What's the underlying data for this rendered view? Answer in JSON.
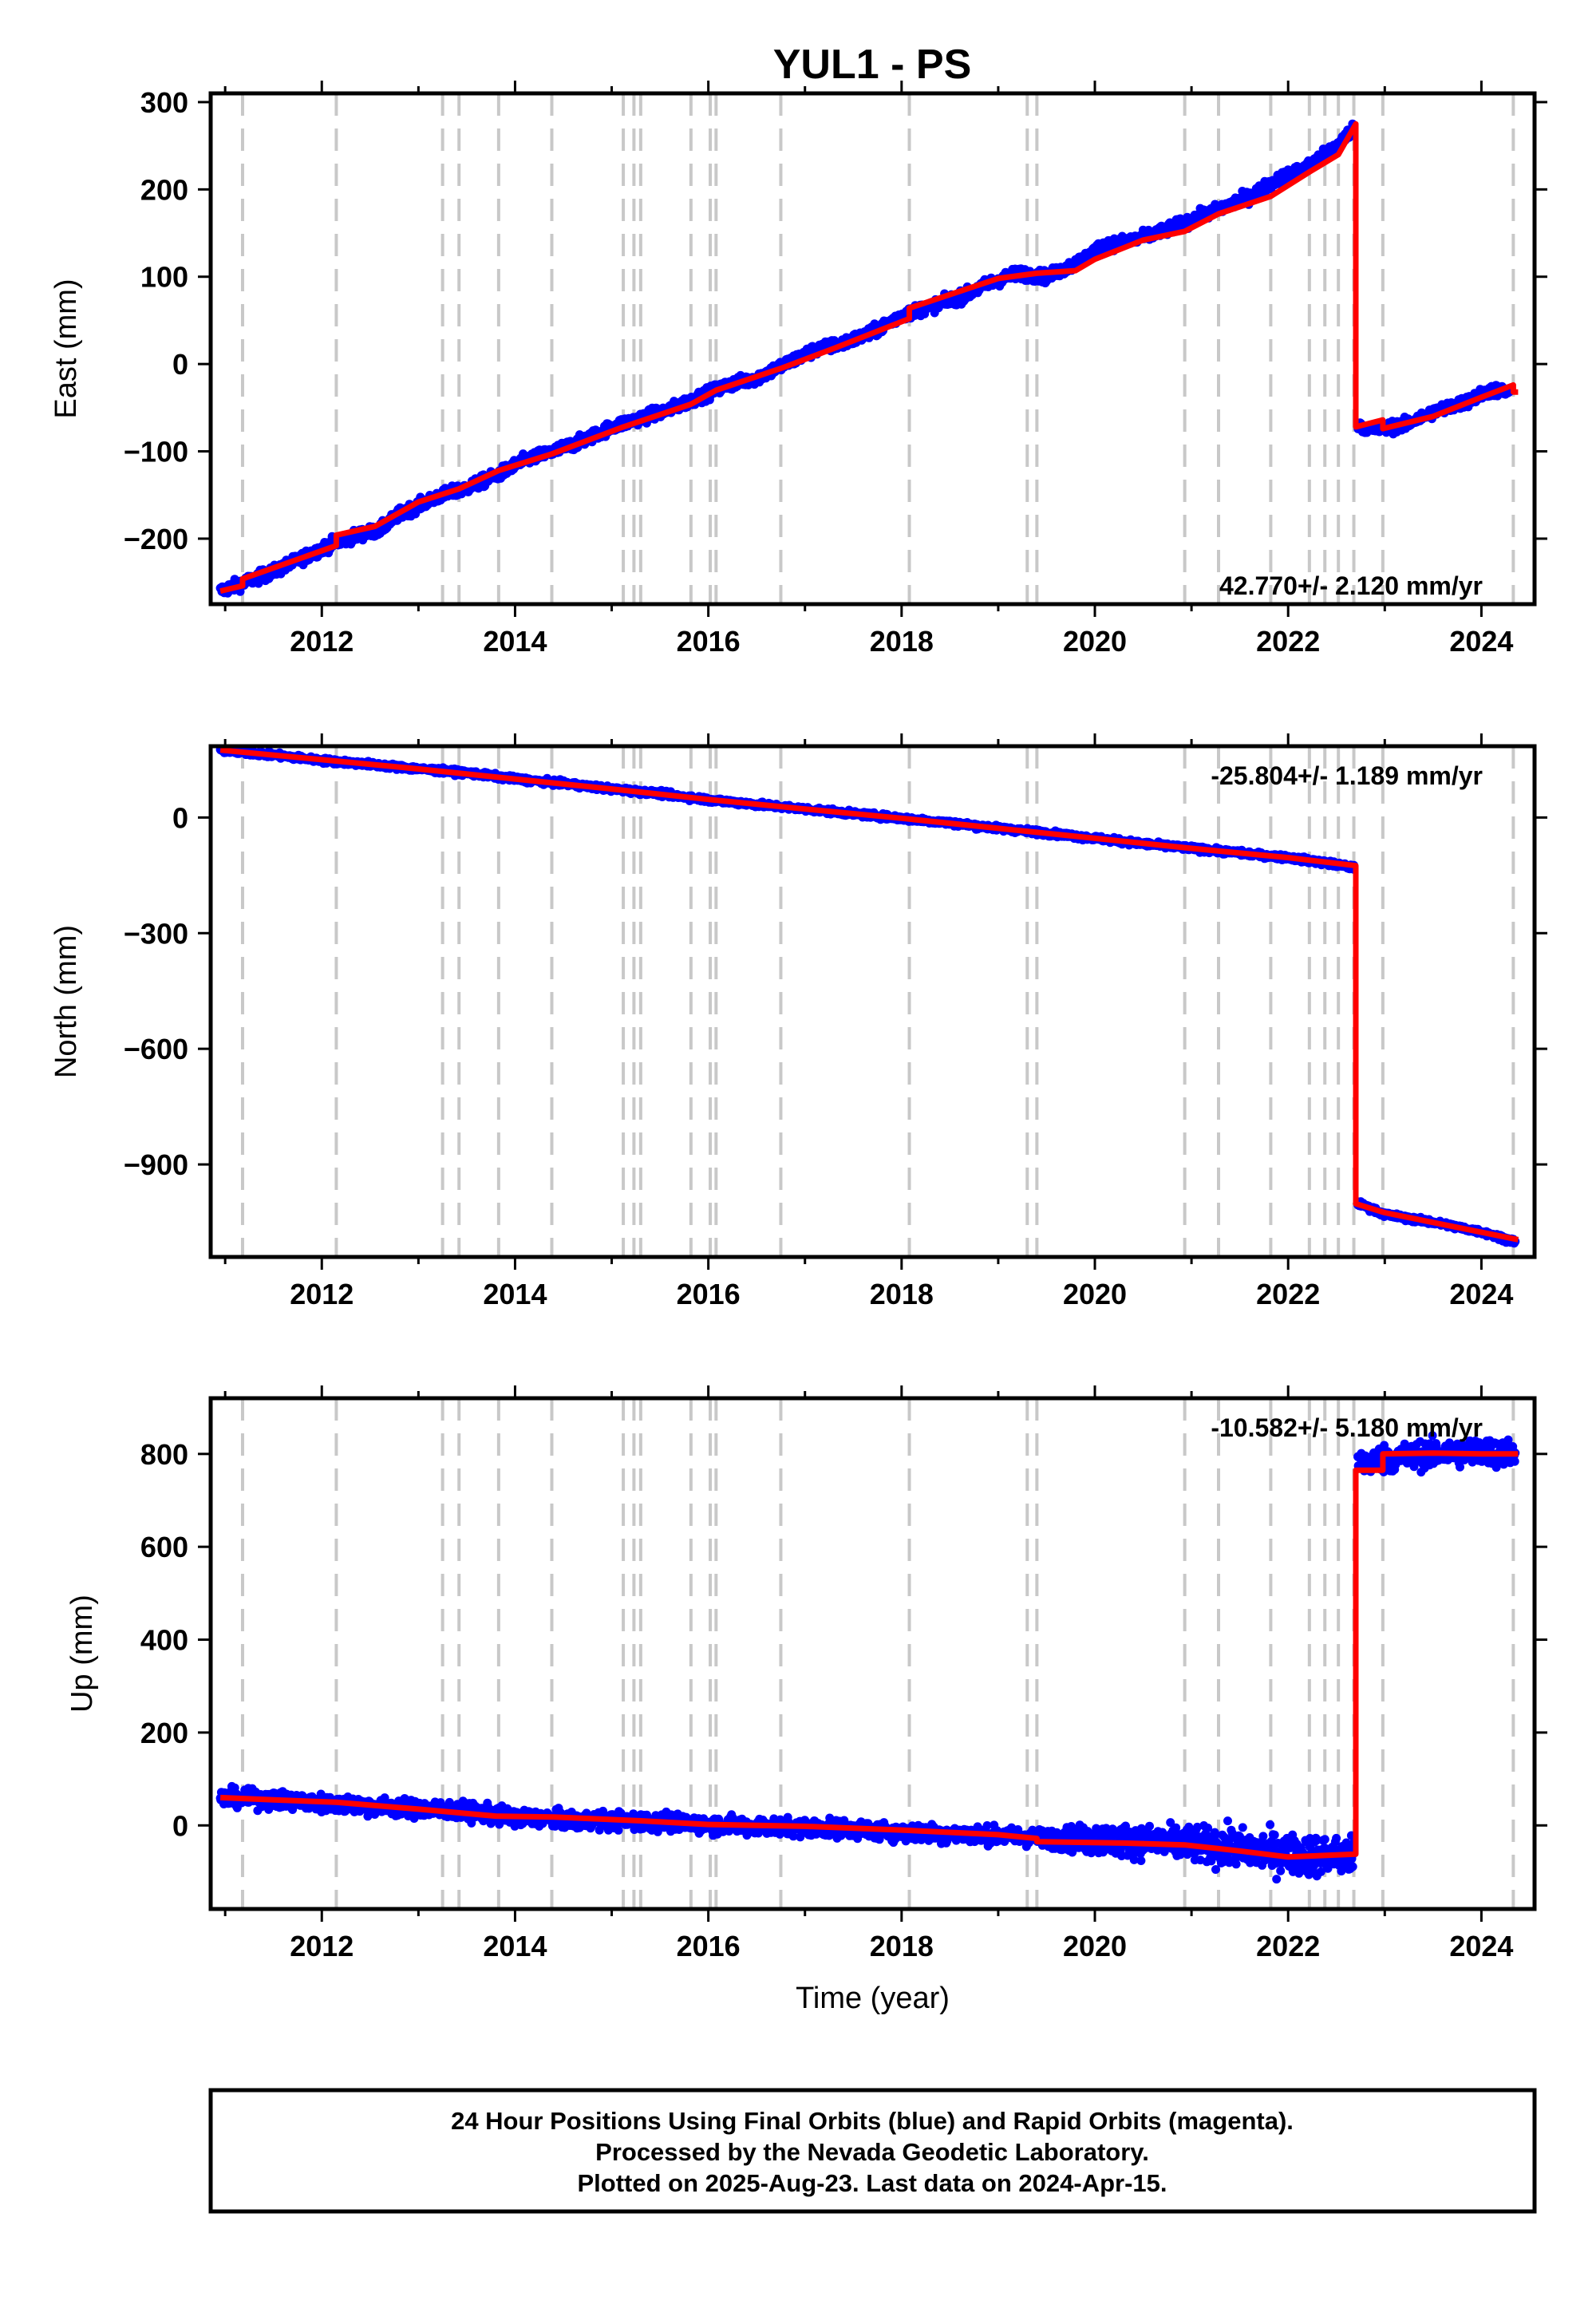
{
  "title": "YUL1 - PS",
  "footer": {
    "line1": "24 Hour Positions Using Final Orbits (blue) and Rapid Orbits (magenta).",
    "line2": "Processed by the Nevada Geodetic Laboratory.",
    "line3": "Plotted on 2025-Aug-23. Last data on 2024-Apr-15."
  },
  "colors": {
    "final_orbits": "#0000ff",
    "model": "#ff0000",
    "event_lines": "#c8c8c8",
    "axes": "#000000"
  },
  "chart_data": [
    {
      "type": "scatter",
      "panel": "east",
      "ylabel": "East (mm)",
      "xlabel": "",
      "rate_label": "42.770+/- 2.120 mm/yr",
      "xlim": [
        2010.85,
        2024.55
      ],
      "ylim": [
        -275,
        310
      ],
      "xticks": [
        2012,
        2014,
        2016,
        2018,
        2020,
        2022,
        2024
      ],
      "yticks": [
        -200,
        -100,
        0,
        100,
        200,
        300
      ],
      "ytick_labels": [
        "−200",
        "−100",
        "0",
        "100",
        "200",
        "300"
      ],
      "event_lines": [
        2011.18,
        2012.15,
        2013.25,
        2013.42,
        2013.83,
        2014.38,
        2015.12,
        2015.23,
        2015.3,
        2015.82,
        2016.02,
        2016.08,
        2016.75,
        2018.08,
        2019.3,
        2019.4,
        2020.93,
        2021.28,
        2021.82,
        2022.22,
        2022.38,
        2022.52,
        2022.68,
        2022.98,
        2024.33
      ],
      "series": [
        {
          "name": "Final Orbits",
          "style": "points",
          "x": [
            2010.95,
            2011.2,
            2011.5,
            2011.8,
            2012.1,
            2012.4,
            2012.6,
            2012.8,
            2013.2,
            2013.5,
            2013.8,
            2014.1,
            2014.4,
            2014.7,
            2015.0,
            2015.3,
            2015.6,
            2015.9,
            2016.2,
            2016.5,
            2016.8,
            2017.1,
            2017.4,
            2017.7,
            2018.0,
            2018.3,
            2018.6,
            2018.9,
            2019.2,
            2019.5,
            2019.8,
            2020.1,
            2020.4,
            2020.7,
            2021.0,
            2021.3,
            2021.6,
            2021.9,
            2022.2,
            2022.5,
            2022.68,
            2022.72,
            2022.9,
            2023.2,
            2023.5,
            2023.8,
            2024.1,
            2024.3
          ],
          "y": [
            -260,
            -250,
            -238,
            -222,
            -206,
            -195,
            -190,
            -172,
            -152,
            -142,
            -128,
            -110,
            -100,
            -88,
            -72,
            -62,
            -52,
            -38,
            -24,
            -16,
            0,
            16,
            24,
            36,
            56,
            66,
            76,
            92,
            104,
            100,
            115,
            136,
            142,
            152,
            165,
            178,
            192,
            212,
            226,
            250,
            270,
            -70,
            -75,
            -70,
            -55,
            -45,
            -30,
            -32
          ],
          "scatter_mm": 8
        },
        {
          "name": "Model",
          "style": "line",
          "x": [
            2010.95,
            2011.18,
            2011.18,
            2012.15,
            2012.15,
            2012.55,
            2013.0,
            2013.42,
            2013.83,
            2014.38,
            2015.12,
            2015.82,
            2016.08,
            2016.75,
            2017.3,
            2018.08,
            2018.08,
            2019.0,
            2019.4,
            2019.8,
            2020.0,
            2020.5,
            2020.93,
            2021.28,
            2021.82,
            2022.22,
            2022.52,
            2022.7,
            2022.7,
            2022.98,
            2022.98,
            2023.5,
            2024.0,
            2024.33,
            2024.33,
            2024.38
          ],
          "y": [
            -260,
            -254,
            -246,
            -208,
            -196,
            -186,
            -158,
            -143,
            -122,
            -103,
            -72,
            -46,
            -30,
            -5,
            18,
            52,
            64,
            98,
            104,
            107,
            120,
            142,
            152,
            172,
            192,
            220,
            240,
            275,
            -72,
            -64,
            -74,
            -60,
            -38,
            -24,
            -32,
            -32
          ]
        }
      ]
    },
    {
      "type": "scatter",
      "panel": "north",
      "ylabel": "North (mm)",
      "xlabel": "",
      "rate_label": "-25.804+/- 1.189 mm/yr",
      "xlim": [
        2010.85,
        2024.55
      ],
      "ylim": [
        -1140,
        185
      ],
      "xticks": [
        2012,
        2014,
        2016,
        2018,
        2020,
        2022,
        2024
      ],
      "yticks": [
        -900,
        -600,
        -300,
        0
      ],
      "ytick_labels": [
        "−900",
        "−600",
        "−300",
        "0"
      ],
      "event_lines": [
        2011.18,
        2012.15,
        2013.25,
        2013.42,
        2013.83,
        2014.38,
        2015.12,
        2015.23,
        2015.3,
        2015.82,
        2016.02,
        2016.08,
        2016.75,
        2018.08,
        2019.3,
        2019.4,
        2020.93,
        2021.28,
        2021.82,
        2022.22,
        2022.38,
        2022.52,
        2022.68,
        2022.98,
        2024.33
      ],
      "series": [
        {
          "name": "Final Orbits",
          "style": "points",
          "x": [
            2010.95,
            2011.5,
            2012.0,
            2012.5,
            2013.0,
            2013.5,
            2014.0,
            2014.5,
            2015.0,
            2015.5,
            2016.0,
            2016.5,
            2017.0,
            2017.5,
            2018.0,
            2018.5,
            2019.0,
            2019.5,
            2020.0,
            2020.5,
            2021.0,
            2021.5,
            2022.0,
            2022.4,
            2022.68,
            2022.72,
            2023.0,
            2023.5,
            2024.0,
            2024.35
          ],
          "y": [
            175,
            162,
            148,
            138,
            126,
            116,
            100,
            88,
            74,
            62,
            46,
            34,
            22,
            10,
            -2,
            -14,
            -28,
            -40,
            -54,
            -68,
            -80,
            -92,
            -104,
            -118,
            -130,
            -1000,
            -1030,
            -1050,
            -1075,
            -1100
          ],
          "scatter_mm": 8
        },
        {
          "name": "Model",
          "style": "line",
          "x": [
            2010.95,
            2012.0,
            2013.0,
            2014.0,
            2015.0,
            2016.0,
            2017.0,
            2018.0,
            2019.0,
            2020.0,
            2021.0,
            2022.0,
            2022.7,
            2022.7,
            2023.0,
            2024.38
          ],
          "y": [
            175,
            150,
            126,
            100,
            74,
            47,
            22,
            -2,
            -28,
            -54,
            -80,
            -104,
            -125,
            -1002,
            -1025,
            -1095
          ]
        }
      ]
    },
    {
      "type": "scatter",
      "panel": "up",
      "ylabel": "Up (mm)",
      "xlabel": "Time (year)",
      "rate_label": "-10.582+/- 5.180 mm/yr",
      "xlim": [
        2010.85,
        2024.55
      ],
      "ylim": [
        -180,
        920
      ],
      "xticks": [
        2012,
        2014,
        2016,
        2018,
        2020,
        2022,
        2024
      ],
      "yticks": [
        0,
        200,
        400,
        600,
        800
      ],
      "ytick_labels": [
        "0",
        "200",
        "400",
        "600",
        "800"
      ],
      "event_lines": [
        2011.18,
        2012.15,
        2013.25,
        2013.42,
        2013.83,
        2014.38,
        2015.12,
        2015.23,
        2015.3,
        2015.82,
        2016.02,
        2016.08,
        2016.75,
        2018.08,
        2019.3,
        2019.4,
        2020.93,
        2021.28,
        2021.82,
        2022.22,
        2022.38,
        2022.52,
        2022.68,
        2022.98,
        2024.33
      ],
      "series": [
        {
          "name": "Final Orbits",
          "style": "points",
          "x": [
            2010.95,
            2011.5,
            2012.0,
            2012.5,
            2013.0,
            2013.5,
            2014.0,
            2014.5,
            2015.0,
            2015.5,
            2016.0,
            2016.5,
            2017.0,
            2017.5,
            2018.0,
            2018.5,
            2019.0,
            2019.5,
            2020.0,
            2020.5,
            2021.0,
            2021.5,
            2022.0,
            2022.4,
            2022.68,
            2022.72,
            2023.0,
            2023.5,
            2024.0,
            2024.35
          ],
          "y": [
            60,
            55,
            48,
            42,
            36,
            30,
            18,
            12,
            10,
            8,
            2,
            -2,
            -4,
            -8,
            -15,
            -18,
            -22,
            -28,
            -30,
            -35,
            -40,
            -50,
            -62,
            -65,
            -68,
            780,
            790,
            800,
            805,
            800
          ],
          "scatter_mm": [
            22,
            22,
            22,
            22,
            22,
            22,
            22,
            22,
            22,
            22,
            22,
            22,
            22,
            22,
            22,
            22,
            22,
            22,
            40,
            40,
            45,
            50,
            50,
            50,
            50,
            35,
            35,
            35,
            35,
            35
          ]
        },
        {
          "name": "Model",
          "style": "line",
          "x": [
            2010.95,
            2011.5,
            2012.15,
            2013.0,
            2013.8,
            2014.4,
            2015.3,
            2016.0,
            2017.0,
            2018.0,
            2019.0,
            2019.4,
            2019.4,
            2020.3,
            2020.93,
            2021.5,
            2022.0,
            2022.7,
            2022.7,
            2022.98,
            2022.98,
            2023.5,
            2024.0,
            2024.38
          ],
          "y": [
            60,
            55,
            50,
            35,
            20,
            18,
            10,
            2,
            -2,
            -10,
            -20,
            -28,
            -35,
            -38,
            -42,
            -55,
            -68,
            -62,
            765,
            765,
            800,
            802,
            800,
            800
          ]
        }
      ]
    }
  ]
}
